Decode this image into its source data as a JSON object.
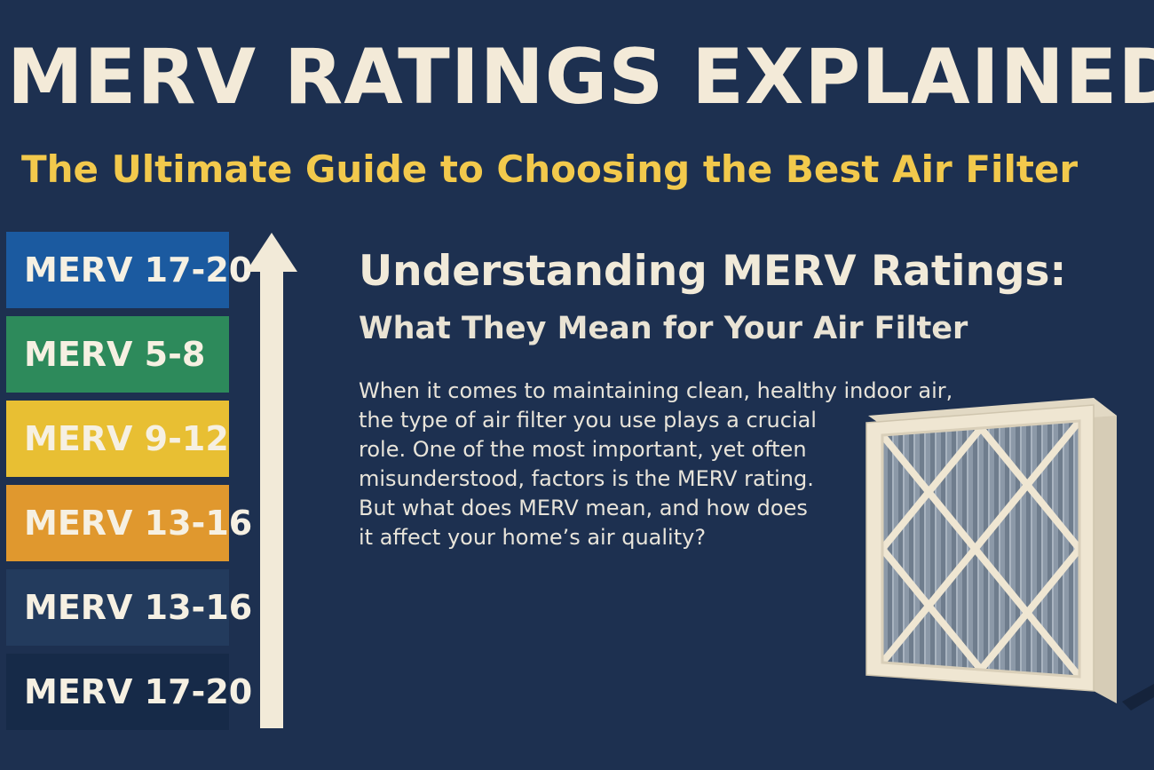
{
  "header": {
    "title": "MERV RATINGS EXPLAINED",
    "subtitle": "The Ultimate Guide to Choosing the Best Air Filter"
  },
  "ratings": [
    {
      "label": "MERV 17-20",
      "color": "#1b5aa0"
    },
    {
      "label": "MERV 5-8",
      "color": "#2d8a5b"
    },
    {
      "label": "MERV 9-12",
      "color": "#e8bf33"
    },
    {
      "label": "MERV 13-16",
      "color": "#e0982e"
    },
    {
      "label": "MERV 13-16",
      "color": "#233b5d"
    },
    {
      "label": "MERV 17-20",
      "color": "#162a48"
    }
  ],
  "article": {
    "heading": "Understanding MERV Ratings:",
    "subheading": "What They Mean for Your Air Filter",
    "lines": [
      "When it comes to maintaining clean, healthy indoor air,",
      "the type of air filter you use plays a crucial",
      "role. One of the most important, yet often",
      "misunderstood, factors is the MERV rating.",
      "But what does MERV mean, and how does",
      "it affect your home’s air quality?"
    ]
  },
  "icons": {
    "arrow": "up-arrow-icon",
    "filter": "air-filter-icon"
  },
  "colors": {
    "background": "#1d3050",
    "title": "#f3ead8",
    "subtitle": "#f2c94c",
    "arrow": "#f2ead8",
    "filter_frame": "#efe6d2",
    "filter_media": "#8a97a6"
  }
}
